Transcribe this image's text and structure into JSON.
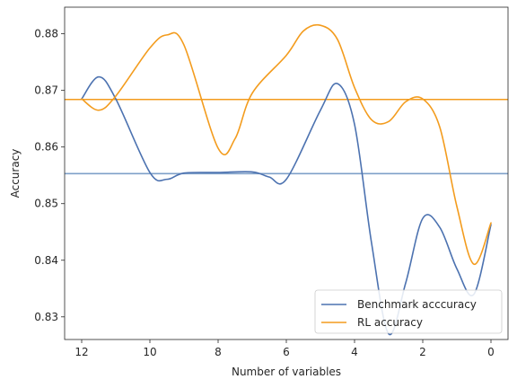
{
  "chart_data": {
    "type": "line",
    "xlabel": "Number of variables",
    "ylabel": "Accuracy",
    "xlim": [
      12.5,
      -0.5
    ],
    "ylim": [
      0.826,
      0.8847
    ],
    "x_ticks": [
      12,
      10,
      8,
      6,
      4,
      2,
      0
    ],
    "y_ticks": [
      0.83,
      0.84,
      0.85,
      0.86,
      0.87,
      0.88
    ],
    "grid": false,
    "legend_position": "lower right",
    "series": [
      {
        "name": "Benchmark acccuracy",
        "color": "#4c72b0",
        "x": [
          12,
          11.5,
          11,
          10,
          9.5,
          9,
          8,
          7,
          6.5,
          6,
          5,
          4.5,
          4,
          3.5,
          3,
          2.5,
          2,
          1.5,
          1,
          0.5,
          0
        ],
        "y": [
          0.8685,
          0.8724,
          0.8685,
          0.8555,
          0.8543,
          0.8554,
          0.8555,
          0.8556,
          0.8547,
          0.8543,
          0.8665,
          0.8712,
          0.864,
          0.843,
          0.827,
          0.836,
          0.8474,
          0.8458,
          0.8385,
          0.834,
          0.8463
        ]
      },
      {
        "name": "RL accuracy",
        "color": "#f39c1e",
        "x": [
          12,
          11.5,
          11,
          10,
          9.5,
          9,
          8,
          7.5,
          7,
          6,
          5.5,
          5,
          4.5,
          4,
          3.5,
          3,
          2.5,
          2,
          1.5,
          1,
          0.5,
          0
        ],
        "y": [
          0.8685,
          0.8665,
          0.869,
          0.8775,
          0.8798,
          0.878,
          0.8598,
          0.8615,
          0.8695,
          0.8762,
          0.8805,
          0.8815,
          0.879,
          0.8705,
          0.8648,
          0.8645,
          0.868,
          0.8685,
          0.8635,
          0.8495,
          0.8393,
          0.8466
        ]
      }
    ],
    "reference_lines": [
      {
        "series": "Benchmark acccuracy",
        "y": 0.8553,
        "color": "#7fa0c8"
      },
      {
        "series": "RL accuracy",
        "y": 0.8684,
        "color": "#f39c1e"
      }
    ]
  }
}
